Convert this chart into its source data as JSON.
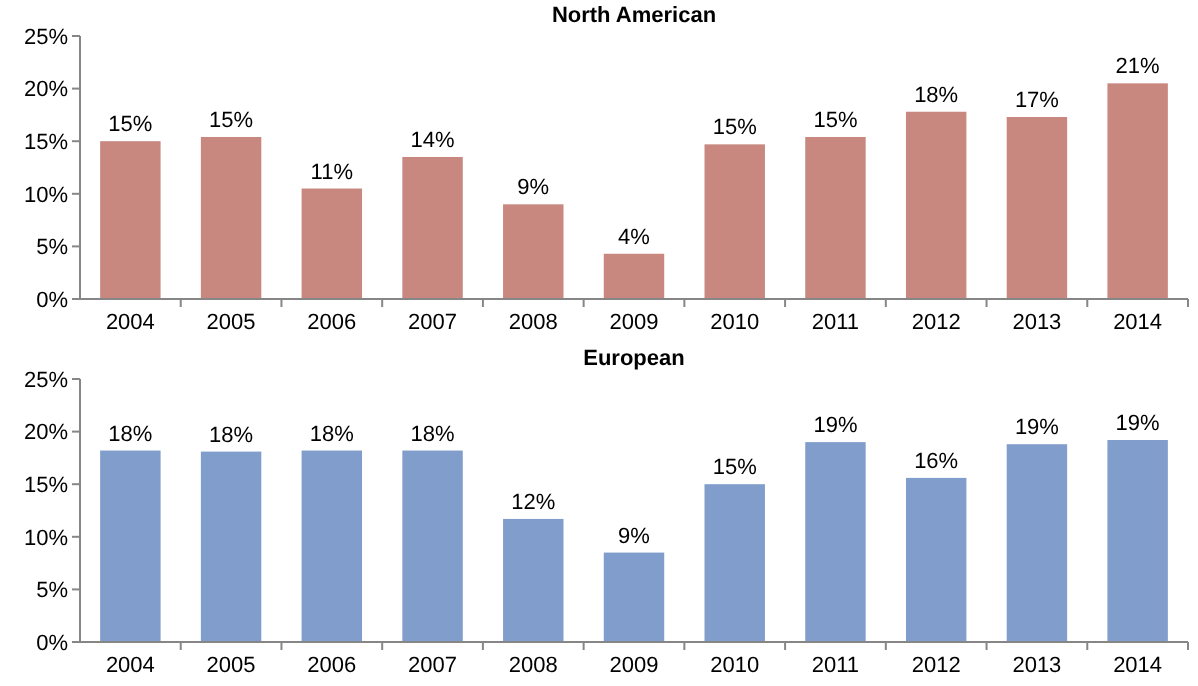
{
  "chart_data": [
    {
      "type": "bar",
      "title": "North American",
      "categories": [
        "2004",
        "2005",
        "2006",
        "2007",
        "2008",
        "2009",
        "2010",
        "2011",
        "2012",
        "2013",
        "2014"
      ],
      "values": [
        15,
        15.4,
        10.5,
        13.5,
        9,
        4.3,
        14.7,
        15.4,
        17.8,
        17.3,
        20.5
      ],
      "value_labels": [
        "15%",
        "15%",
        "11%",
        "14%",
        "9%",
        "4%",
        "15%",
        "15%",
        "18%",
        "17%",
        "21%"
      ],
      "color": "#c8877f",
      "ylim": [
        0,
        25
      ],
      "yticks": [
        {
          "value": 0,
          "label": "0%"
        },
        {
          "value": 5,
          "label": "5%"
        },
        {
          "value": 10,
          "label": "10%"
        },
        {
          "value": 15,
          "label": "15%"
        },
        {
          "value": 20,
          "label": "20%"
        },
        {
          "value": 25,
          "label": "25%"
        }
      ]
    },
    {
      "type": "bar",
      "title": "European",
      "categories": [
        "2004",
        "2005",
        "2006",
        "2007",
        "2008",
        "2009",
        "2010",
        "2011",
        "2012",
        "2013",
        "2014"
      ],
      "values": [
        18.2,
        18.1,
        18.2,
        18.2,
        11.7,
        8.5,
        15,
        19,
        15.6,
        18.8,
        19.2
      ],
      "value_labels": [
        "18%",
        "18%",
        "18%",
        "18%",
        "12%",
        "9%",
        "15%",
        "19%",
        "16%",
        "19%",
        "19%"
      ],
      "color": "#819dcb",
      "ylim": [
        0,
        25
      ],
      "yticks": [
        {
          "value": 0,
          "label": "0%"
        },
        {
          "value": 5,
          "label": "5%"
        },
        {
          "value": 10,
          "label": "10%"
        },
        {
          "value": 15,
          "label": "15%"
        },
        {
          "value": 20,
          "label": "20%"
        },
        {
          "value": 25,
          "label": "25%"
        }
      ]
    }
  ]
}
